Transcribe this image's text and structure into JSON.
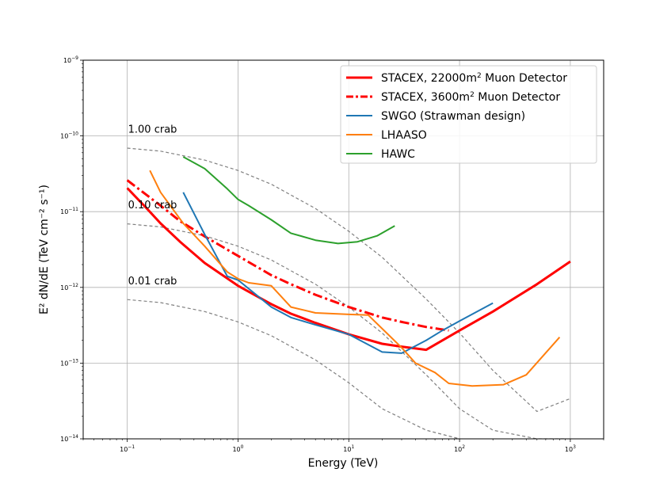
{
  "chart_data": {
    "type": "line",
    "xlabel": "Energy (TeV)",
    "ylabel": "E² dN/dE (TeV cm⁻² s⁻¹)",
    "xscale": "log",
    "yscale": "log",
    "xlim": [
      0.04,
      2000
    ],
    "ylim": [
      1e-14,
      1e-09
    ],
    "grid": true,
    "legend_position": "top-right",
    "x_ticks": [
      {
        "value": 0.1,
        "base": "10",
        "exp": "−1"
      },
      {
        "value": 1,
        "base": "10",
        "exp": "0"
      },
      {
        "value": 10,
        "base": "10",
        "exp": "1"
      },
      {
        "value": 100,
        "base": "10",
        "exp": "2"
      },
      {
        "value": 1000,
        "base": "10",
        "exp": "3"
      }
    ],
    "y_ticks": [
      {
        "value": 1e-14,
        "base": "10",
        "exp": "−14"
      },
      {
        "value": 1e-13,
        "base": "10",
        "exp": "−13"
      },
      {
        "value": 1e-12,
        "base": "10",
        "exp": "−12"
      },
      {
        "value": 1e-11,
        "base": "10",
        "exp": "−11"
      },
      {
        "value": 1e-10,
        "base": "10",
        "exp": "−10"
      },
      {
        "value": 1e-09,
        "base": "10",
        "exp": "−9"
      }
    ],
    "annotations": [
      {
        "text": "1.00 crab",
        "x": 0.1,
        "y": 1.1e-10
      },
      {
        "text": "0.10 crab",
        "x": 0.1,
        "y": 1.1e-11
      },
      {
        "text": "0.01 crab",
        "x": 0.1,
        "y": 1.1e-12
      }
    ],
    "series": [
      {
        "name": "STACEX, 22000m² Muon Detector",
        "legend": {
          "main": "STACEX, 22000m",
          "sup": "2",
          "rest": " Muon Detector"
        },
        "color": "#ff0000",
        "style": "solid",
        "width": 3,
        "x": [
          0.1,
          0.15,
          0.2,
          0.3,
          0.5,
          1,
          2,
          3,
          5,
          10,
          20,
          30,
          50,
          100,
          200,
          500,
          1000
        ],
        "y": [
          2.05e-11,
          1.1e-11,
          7e-12,
          4e-12,
          2.1e-12,
          1.05e-12,
          6e-13,
          4.5e-13,
          3.4e-13,
          2.4e-13,
          1.8e-13,
          1.65e-13,
          1.5e-13,
          2.7e-13,
          4.8e-13,
          1.1e-12,
          2.2e-12
        ]
      },
      {
        "name": "STACEX, 3600m² Muon Detector",
        "legend": {
          "main": "STACEX, 3600m",
          "sup": "2",
          "rest": " Muon Detector"
        },
        "color": "#ff0000",
        "style": "dashdot",
        "width": 3,
        "x": [
          0.1,
          0.2,
          0.3,
          0.5,
          1,
          2,
          3,
          5,
          10,
          20,
          30,
          50,
          80
        ],
        "y": [
          2.6e-11,
          1.2e-11,
          7.5e-12,
          4.7e-12,
          2.6e-12,
          1.45e-12,
          1.1e-12,
          8e-13,
          5.5e-13,
          4e-13,
          3.5e-13,
          3e-13,
          2.7e-13
        ]
      },
      {
        "name": "SWGO (Strawman design)",
        "legend": {
          "main": "SWGO (Strawman design)",
          "sup": "",
          "rest": ""
        },
        "color": "#1f77b4",
        "style": "solid",
        "width": 2,
        "x": [
          0.32,
          0.5,
          0.8,
          1,
          2,
          3,
          5,
          10,
          20,
          30,
          50,
          70,
          100,
          200
        ],
        "y": [
          1.8e-11,
          5e-12,
          1.4e-12,
          1.25e-12,
          5.5e-13,
          4e-13,
          3.2e-13,
          2.4e-13,
          1.4e-13,
          1.35e-13,
          2e-13,
          2.7e-13,
          3.6e-13,
          6.2e-13
        ]
      },
      {
        "name": "LHAASO",
        "legend": {
          "main": "LHAASO",
          "sup": "",
          "rest": ""
        },
        "color": "#ff7f0e",
        "style": "solid",
        "width": 2,
        "x": [
          0.16,
          0.2,
          0.32,
          0.5,
          0.8,
          1,
          1.25,
          2,
          3,
          5,
          10,
          15,
          30,
          40,
          60,
          80,
          130,
          250,
          400,
          800
        ],
        "y": [
          3.5e-11,
          1.8e-11,
          7e-12,
          3.5e-12,
          1.6e-12,
          1.3e-12,
          1.15e-12,
          1.05e-12,
          5.5e-13,
          4.6e-13,
          4.4e-13,
          4.3e-13,
          1.6e-13,
          1e-13,
          7.5e-14,
          5.4e-14,
          5e-14,
          5.2e-14,
          7e-14,
          2.2e-13
        ]
      },
      {
        "name": "HAWC",
        "legend": {
          "main": "HAWC",
          "sup": "",
          "rest": ""
        },
        "color": "#2ca02c",
        "style": "solid",
        "width": 2,
        "x": [
          0.32,
          0.5,
          0.8,
          1,
          1.25,
          2,
          3,
          5,
          8,
          12,
          18,
          26
        ],
        "y": [
          5.3e-11,
          3.7e-11,
          2e-11,
          1.45e-11,
          1.2e-11,
          7.8e-12,
          5.2e-12,
          4.2e-12,
          3.8e-12,
          4e-12,
          4.8e-12,
          6.5e-12
        ]
      }
    ],
    "reference_curves": [
      {
        "label": "1.00 crab",
        "color": "#808080",
        "style": "dashed",
        "x": [
          0.1,
          0.2,
          0.5,
          1,
          2,
          5,
          10,
          20,
          50,
          100,
          200,
          500,
          1000
        ],
        "y": [
          6.9e-11,
          6.3e-11,
          4.8e-11,
          3.5e-11,
          2.3e-11,
          1.1e-11,
          5.5e-12,
          2.5e-12,
          7e-13,
          2.5e-13,
          8e-14,
          2.3e-14,
          3.4e-14
        ]
      },
      {
        "label": "0.10 crab",
        "color": "#808080",
        "style": "dashed",
        "x": [
          0.1,
          0.2,
          0.5,
          1,
          2,
          5,
          10,
          20,
          50,
          100,
          200,
          500,
          900
        ],
        "y": [
          6.9e-12,
          6.3e-12,
          4.8e-12,
          3.5e-12,
          2.3e-12,
          1.1e-12,
          5.5e-13,
          2.5e-13,
          7e-14,
          2.5e-14,
          1.3e-14,
          1e-14,
          1e-14
        ]
      },
      {
        "label": "0.01 crab",
        "color": "#808080",
        "style": "dashed",
        "x": [
          0.1,
          0.2,
          0.5,
          1,
          2,
          5,
          10,
          20,
          50,
          100
        ],
        "y": [
          6.9e-13,
          6.3e-13,
          4.8e-13,
          3.5e-13,
          2.3e-13,
          1.1e-13,
          5.5e-14,
          2.5e-14,
          1.3e-14,
          1e-14
        ]
      }
    ]
  }
}
